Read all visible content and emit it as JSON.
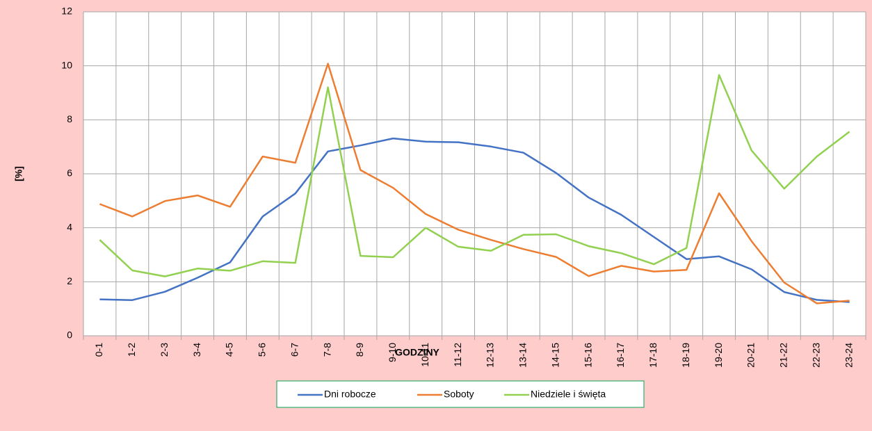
{
  "chart_data": {
    "type": "line",
    "categories": [
      "0-1",
      "1-2",
      "2-3",
      "3-4",
      "4-5",
      "5-6",
      "6-7",
      "7-8",
      "8-9",
      "9-10",
      "10-11",
      "11-12",
      "12-13",
      "13-14",
      "14-15",
      "15-16",
      "16-17",
      "17-18",
      "18-19",
      "19-20",
      "20-21",
      "21-22",
      "22-23",
      "23-24"
    ],
    "series": [
      {
        "name": "Dni robocze",
        "color": "#4472c4",
        "values": [
          1.35,
          1.32,
          1.63,
          2.15,
          2.72,
          4.42,
          5.27,
          6.83,
          7.05,
          7.31,
          7.19,
          7.17,
          7.01,
          6.78,
          6.03,
          5.12,
          4.48,
          3.66,
          2.84,
          2.94,
          2.46,
          1.62,
          1.33,
          1.25
        ]
      },
      {
        "name": "Soboty",
        "color": "#ed7d31",
        "values": [
          4.88,
          4.42,
          4.99,
          5.2,
          4.78,
          6.64,
          6.41,
          10.08,
          6.14,
          5.48,
          4.51,
          3.93,
          3.55,
          3.21,
          2.92,
          2.21,
          2.59,
          2.38,
          2.44,
          5.28,
          3.5,
          1.97,
          1.2,
          1.3
        ]
      },
      {
        "name": "Niedziele i święta",
        "color": "#92d050",
        "values": [
          3.55,
          2.42,
          2.2,
          2.49,
          2.41,
          2.76,
          2.7,
          9.2,
          2.96,
          2.91,
          4.0,
          3.3,
          3.15,
          3.74,
          3.76,
          3.32,
          3.06,
          2.65,
          3.25,
          9.66,
          6.86,
          5.45,
          6.64,
          7.56
        ]
      }
    ],
    "xlabel": "GODZINY",
    "ylabel": "[%]",
    "ylim": [
      0,
      12
    ],
    "yticks": [
      0,
      2,
      4,
      6,
      8,
      10,
      12
    ],
    "grid": true,
    "legend": "bottom"
  }
}
